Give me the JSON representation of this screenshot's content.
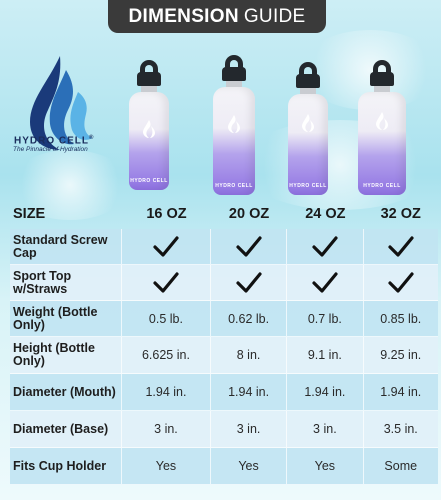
{
  "header": {
    "title_bold": "DIMENSION",
    "title_light": "GUIDE"
  },
  "brand": {
    "name": "HYDRO CELL",
    "registered": "®",
    "tagline": "The Pinnacle of Hydration"
  },
  "bottle_label": "HYDRO CELL",
  "table": {
    "size_label": "SIZE",
    "sizes": [
      "16 OZ",
      "20 OZ",
      "24 OZ",
      "32 OZ"
    ],
    "rows": [
      {
        "label": "Standard Screw Cap",
        "values": [
          "check",
          "check",
          "check",
          "check"
        ]
      },
      {
        "label": "Sport Top w/Straws",
        "values": [
          "check",
          "check",
          "check",
          "check"
        ]
      },
      {
        "label": "Weight (Bottle Only)",
        "values": [
          "0.5 lb.",
          "0.62 lb.",
          "0.7 lb.",
          "0.85 lb."
        ]
      },
      {
        "label": "Height (Bottle Only)",
        "values": [
          "6.625 in.",
          "8 in.",
          "9.1 in.",
          "9.25 in."
        ]
      },
      {
        "label": "Diameter (Mouth)",
        "values": [
          "1.94 in.",
          "1.94 in.",
          "1.94 in.",
          "1.94 in."
        ]
      },
      {
        "label": "Diameter (Base)",
        "values": [
          "3 in.",
          "3 in.",
          "3 in.",
          "3.5 in."
        ]
      },
      {
        "label": "Fits Cup Holder",
        "values": [
          "Yes",
          "Yes",
          "Yes",
          "Some"
        ]
      }
    ]
  },
  "colors": {
    "header_bg": "#3a3a3a",
    "brand_blue": "#1a2d5c",
    "bottle_purple": "#8f72e2",
    "row_blue": "#c1e4f2"
  }
}
